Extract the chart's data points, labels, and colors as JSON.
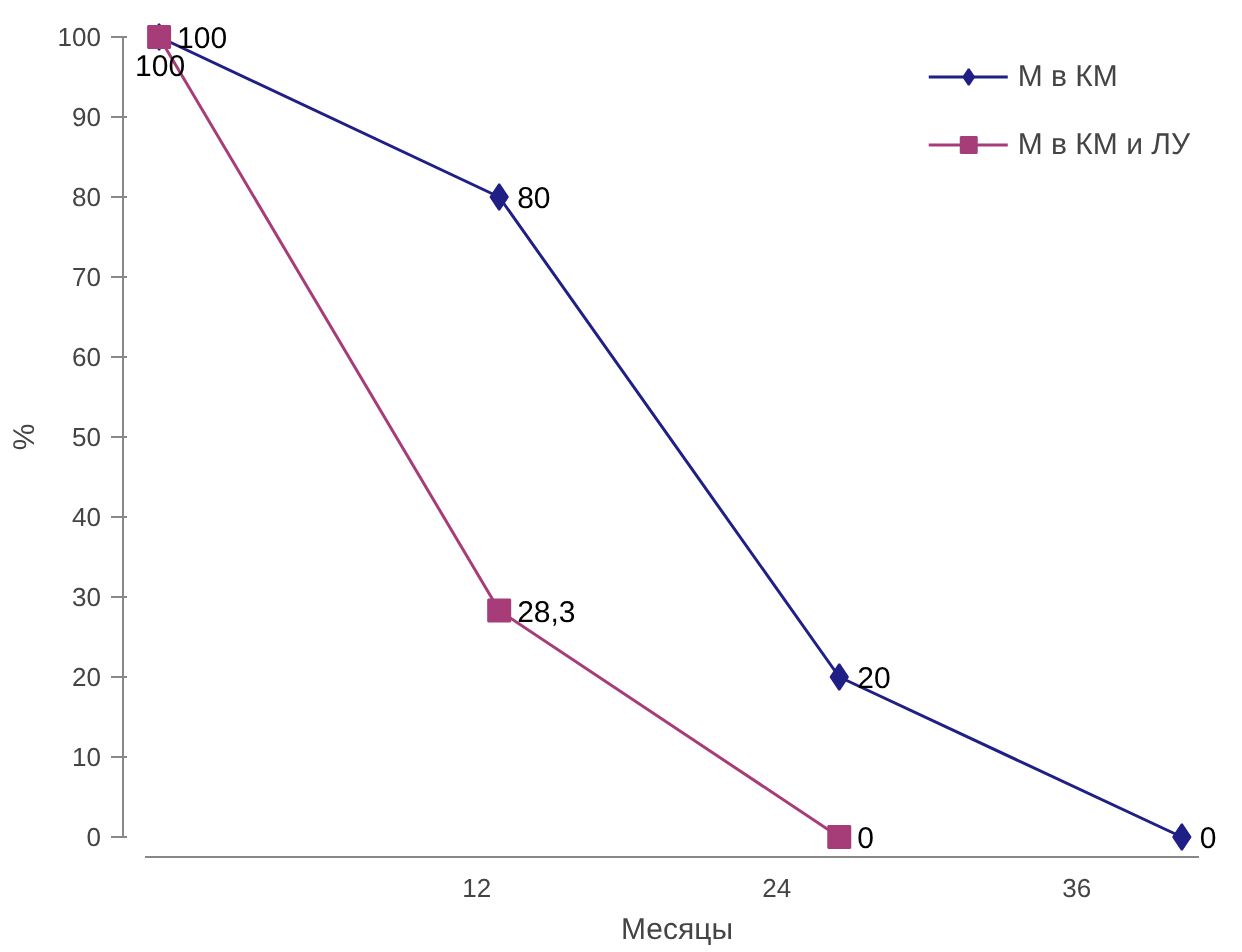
{
  "chart_data": {
    "type": "line",
    "xlabel": "Месяцы",
    "ylabel": "%",
    "x": [
      -0.7,
      12.9,
      26.5,
      40.2
    ],
    "series": [
      {
        "name": "М в КМ",
        "color": "#1f1f86",
        "marker": "diamond",
        "values": [
          100,
          80,
          20,
          0
        ],
        "value_labels": [
          "100",
          "80",
          "20",
          "0"
        ]
      },
      {
        "name": "М в КМ и ЛУ",
        "color": "#a63c78",
        "marker": "square",
        "values": [
          100,
          28.3,
          0,
          null
        ],
        "value_labels": [
          "100",
          "28,3",
          "0",
          null
        ]
      }
    ],
    "xlim": [
      -1.3,
      40.9
    ],
    "xticks": [
      12,
      24,
      36
    ],
    "ylim": [
      0,
      100
    ],
    "yticks": [
      0,
      10,
      20,
      30,
      40,
      50,
      60,
      70,
      80,
      90,
      100
    ],
    "grid": false,
    "legend": "top right",
    "line_style": "solid"
  }
}
